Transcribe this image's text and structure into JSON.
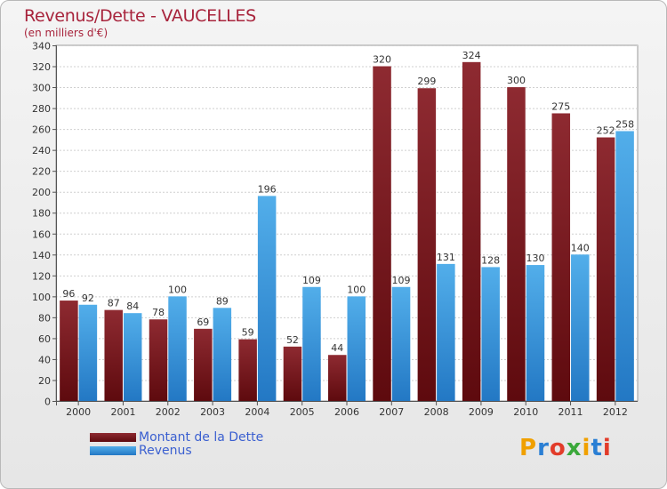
{
  "title": "Revenus/Dette - VAUCELLES",
  "subtitle": "(en milliers d'€)",
  "logo": {
    "letters": [
      "P",
      "r",
      "o",
      "x",
      "i",
      "t",
      "i"
    ],
    "colors": [
      "#f0a000",
      "#2a7fd4",
      "#e23c2a",
      "#3aa83a",
      "#f0a000",
      "#2a7fd4",
      "#e23c2a"
    ]
  },
  "colors": {
    "dette": "#8b1f24",
    "revenus": "#3d9ee0",
    "title": "#a8243c",
    "legend_text": "#3a5fd0"
  },
  "chart_data": {
    "type": "bar",
    "title": "Revenus/Dette - VAUCELLES",
    "ylabel": "(en milliers d'€)",
    "xlabel": "",
    "categories": [
      "2000",
      "2001",
      "2002",
      "2003",
      "2004",
      "2005",
      "2006",
      "2007",
      "2008",
      "2009",
      "2010",
      "2011",
      "2012"
    ],
    "series": [
      {
        "name": "Montant de la Dette",
        "values": [
          96,
          87,
          78,
          69,
          59,
          52,
          44,
          320,
          299,
          324,
          300,
          275,
          252
        ]
      },
      {
        "name": "Revenus",
        "values": [
          92,
          84,
          100,
          89,
          196,
          109,
          100,
          109,
          131,
          128,
          130,
          140,
          258
        ]
      }
    ],
    "ylim": [
      0,
      340
    ],
    "yticks": [
      0,
      20,
      40,
      60,
      80,
      100,
      120,
      140,
      160,
      180,
      200,
      220,
      240,
      260,
      280,
      300,
      320,
      340
    ],
    "grid": true,
    "legend": "bottom-left"
  }
}
